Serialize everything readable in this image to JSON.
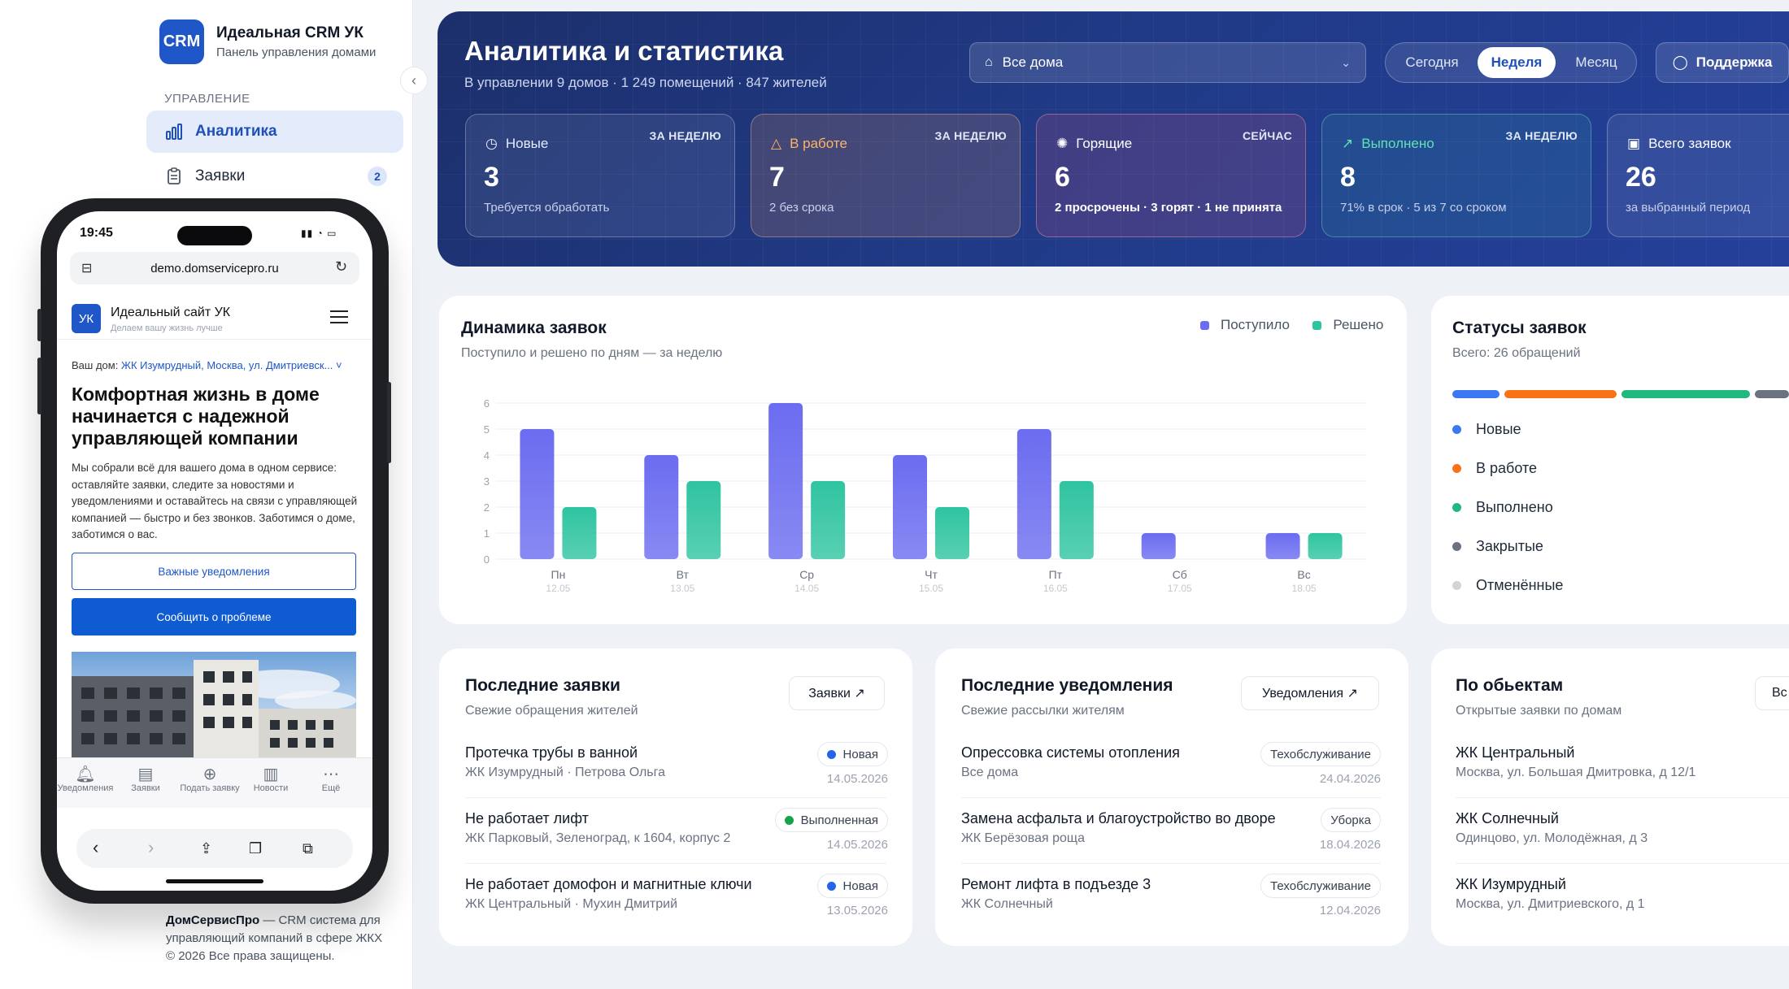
{
  "sidebar": {
    "logo": "CRM",
    "brand_title": "Идеальная CRM УК",
    "brand_sub": "Панель управления домами",
    "section_label": "Управление",
    "items": [
      {
        "label": "Аналитика",
        "icon": "bar-chart-icon",
        "active": true
      },
      {
        "label": "Заявки",
        "icon": "clipboard-icon",
        "badge": "2"
      }
    ],
    "footer_brand": "ДомСервисПро",
    "footer_text": " — CRM система для управляющий компаний в сфере ЖКХ",
    "footer_copy": "© 2026 Все права защищены."
  },
  "phone": {
    "time": "19:45",
    "status_icons": "▮▮ ◔ ▭",
    "url": "demo.domservicepro.ru",
    "site_logo": "УК",
    "site_name": "Идеальный сайт УК",
    "site_tagline": "Делаем вашу жизнь лучше",
    "house_label": "Ваш дом:",
    "house_value": "ЖК Изумрудный, Москва, ул. Дмитриевск...",
    "hero_title": "Комфортная жизнь в доме начинается с надежной управляющей компании",
    "hero_desc": "Мы собрали всё для вашего дома в одном сервисе: оставляйте заявки, следите за новостями и уведомлениями и оставайтесь на связи с управляющей компанией — быстро и без звонков. Заботимся о доме, заботимся о вас.",
    "btn_notifications": "Важные уведомления",
    "btn_report": "Сообщить о проблеме",
    "tabs": [
      {
        "label": "Уведомления",
        "icon": "bell-icon"
      },
      {
        "label": "Заявки",
        "icon": "document-icon"
      },
      {
        "label": "Подать заявку",
        "icon": "plus-circle-icon"
      },
      {
        "label": "Новости",
        "icon": "newspaper-icon"
      },
      {
        "label": "Ещё",
        "icon": "more-icon"
      }
    ]
  },
  "header": {
    "title": "Аналитика и статистика",
    "subtitle": "В управлении 9 домов · 1 249 помещений · 847 жителей",
    "house_select": "Все дома",
    "periods": [
      "Сегодня",
      "Неделя",
      "Месяц"
    ],
    "active_period": "Неделя",
    "support": "Поддержка"
  },
  "kpis": [
    {
      "title": "Новые",
      "tag": "ЗА НЕДЕЛЮ",
      "value": "3",
      "note": "Требуется обработать",
      "color": "#dbe4ff",
      "icon": "clock-icon"
    },
    {
      "title": "В работе",
      "tag": "ЗА НЕДЕЛЮ",
      "value": "7",
      "note": "2 без срока",
      "color": "#ffb36b",
      "icon": "warning-icon"
    },
    {
      "title": "Горящие",
      "tag": "СЕЙЧАС",
      "value": "6",
      "note": "2 просрочены · 3 горят · 1 не принята",
      "color": "#ffffff",
      "icon": "fire-icon"
    },
    {
      "title": "Выполнено",
      "tag": "ЗА НЕДЕЛЮ",
      "value": "8",
      "note": "71% в срок · 5 из 7 со сроком",
      "color": "#5ee2b6",
      "icon": "trend-up-icon"
    },
    {
      "title": "Всего заявок",
      "tag": "",
      "value": "26",
      "note": "за выбранный период",
      "color": "#ffffff",
      "icon": "clipboard-icon"
    }
  ],
  "dynamics": {
    "title": "Динамика заявок",
    "subtitle": "Поступило и решено по дням — за неделю",
    "legend": [
      "Поступило",
      "Решено"
    ]
  },
  "chart_data": {
    "type": "bar",
    "categories": [
      "Пн",
      "Вт",
      "Ср",
      "Чт",
      "Пт",
      "Сб",
      "Вс"
    ],
    "dates": [
      "12.05",
      "13.05",
      "14.05",
      "15.05",
      "16.05",
      "17.05",
      "18.05"
    ],
    "series": [
      {
        "name": "Поступило",
        "values": [
          5,
          4,
          6,
          4,
          5,
          1,
          1
        ],
        "color": "#6b6cf0"
      },
      {
        "name": "Решено",
        "values": [
          2,
          3,
          3,
          2,
          3,
          0,
          1
        ],
        "color": "#2fc4a0"
      }
    ],
    "ylim": [
      0,
      6
    ],
    "yticks": [
      "0",
      "1",
      "2",
      "3",
      "4",
      "5",
      "6"
    ],
    "grid": true,
    "legend": "top-right"
  },
  "statuses": {
    "title": "Статусы заявок",
    "subtitle": "Всего: 26 обращений",
    "items": [
      {
        "label": "Новые",
        "color": "#3b78f2"
      },
      {
        "label": "В работе",
        "color": "#f97316"
      },
      {
        "label": "Выполнено",
        "color": "#1fb97f"
      },
      {
        "label": "Закрытые",
        "color": "#6b7280"
      },
      {
        "label": "Отменённые",
        "color": "#d1d5db"
      }
    ]
  },
  "recent_requests": {
    "title": "Последние заявки",
    "subtitle": "Свежие обращения жителей",
    "link": "Заявки ↗",
    "rows": [
      {
        "title": "Протечка трубы в ванной",
        "sub": "ЖК Изумрудный · Петрова Ольга",
        "status": "Новая",
        "status_color": "#2563eb",
        "date": "14.05.2026"
      },
      {
        "title": "Не работает лифт",
        "sub": "ЖК Парковый, Зеленоград, к 1604, корпус 2",
        "status": "Выполненная",
        "status_color": "#16a34a",
        "date": "14.05.2026"
      },
      {
        "title": "Не работает домофон и магнитные ключи",
        "sub": "ЖК Центральный · Мухин Дмитрий",
        "status": "Новая",
        "status_color": "#2563eb",
        "date": "13.05.2026"
      }
    ]
  },
  "recent_notifications": {
    "title": "Последние уведомления",
    "subtitle": "Свежие рассылки жителям",
    "link": "Уведомления ↗",
    "rows": [
      {
        "title": "Опрессовка системы отопления",
        "sub": "Все дома",
        "tag": "Техобслуживание",
        "date": "24.04.2026"
      },
      {
        "title": "Замена асфальта и благоустройство во дворе",
        "sub": "ЖК Берёзовая роща",
        "tag": "Уборка",
        "date": "18.04.2026"
      },
      {
        "title": "Ремонт лифта в подъезде 3",
        "sub": "ЖК Солнечный",
        "tag": "Техобслуживание",
        "date": "12.04.2026"
      }
    ]
  },
  "by_objects": {
    "title": "По обьектам",
    "subtitle": "Открытые заявки по домам",
    "link": "Вс",
    "rows": [
      {
        "title": "ЖК Центральный",
        "sub": "Москва, ул. Большая Дмитровка, д 12/1"
      },
      {
        "title": "ЖК Солнечный",
        "sub": "Одинцово, ул. Молодёжная, д 3"
      },
      {
        "title": "ЖК Изумрудный",
        "sub": "Москва, ул. Дмитриевского, д 1"
      }
    ]
  }
}
